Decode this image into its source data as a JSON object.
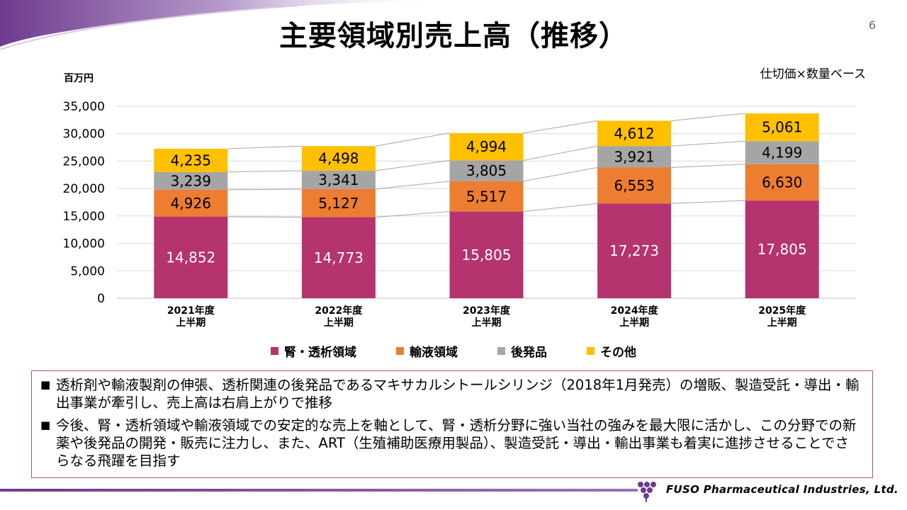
{
  "header": {
    "title": "主要領域別売上高（推移）",
    "page_number": "6"
  },
  "chart_note": {
    "unit": "百万円",
    "basis": "仕切価×数量ベース"
  },
  "chart_data": {
    "type": "bar",
    "stacked": true,
    "title": "主要領域別売上高（推移）",
    "ylabel": "百万円",
    "ylim": [
      0,
      35000
    ],
    "yticks": [
      0,
      5000,
      10000,
      15000,
      20000,
      25000,
      30000,
      35000
    ],
    "ytick_labels": [
      "0",
      "5,000",
      "10,000",
      "15,000",
      "20,000",
      "25,000",
      "30,000",
      "35,000"
    ],
    "categories": [
      [
        "2021年度",
        "上半期"
      ],
      [
        "2022年度",
        "上半期"
      ],
      [
        "2023年度",
        "上半期"
      ],
      [
        "2024年度",
        "上半期"
      ],
      [
        "2025年度",
        "上半期"
      ]
    ],
    "series": [
      {
        "name": "腎・透析領域",
        "color": "#b5336f",
        "label_color": "#ffffff",
        "values": [
          14852,
          14773,
          15805,
          17273,
          17805
        ],
        "labels": [
          "14,852",
          "14,773",
          "15,805",
          "17,273",
          "17,805"
        ]
      },
      {
        "name": "輸液領域",
        "color": "#ed7d31",
        "label_color": "#000000",
        "values": [
          4926,
          5127,
          5517,
          6553,
          6630
        ],
        "labels": [
          "4,926",
          "5,127",
          "5,517",
          "6,553",
          "6,630"
        ]
      },
      {
        "name": "後発品",
        "color": "#a5a5a5",
        "label_color": "#000000",
        "values": [
          3239,
          3341,
          3805,
          3921,
          4199
        ],
        "labels": [
          "3,239",
          "3,341",
          "3,805",
          "3,921",
          "4,199"
        ]
      },
      {
        "name": "その他",
        "color": "#ffc000",
        "label_color": "#000000",
        "values": [
          4235,
          4498,
          4994,
          4612,
          5061
        ],
        "labels": [
          "4,235",
          "4,498",
          "4,994",
          "4,612",
          "5,061"
        ]
      }
    ],
    "series_lines": true,
    "gridlines": true,
    "legend_position": "bottom"
  },
  "summary": {
    "bullet_marker": "■",
    "bullets": [
      "透析剤や輸液製剤の伸張、透析関連の後発品であるマキサカルシトールシリンジ（2018年1月発売）の増販、製造受託・導出・輸出事業が牽引し、売上高は右肩上がりで推移",
      "今後、腎・透析領域や輸液領域での安定的な売上を軸として、腎・透析分野に強い当社の強みを最大限に活かし、この分野での新薬や後発品の開発・販売に注力し、また、ART（生殖補助医療用製品）、製造受託・導出・輸出事業も着実に進捗させることでさらなる飛躍を目指す"
    ]
  },
  "footer": {
    "company": "FUSO Pharmaceutical Industries, Ltd.",
    "logo_icon": "grape-cluster-logo-icon"
  },
  "colors": {
    "accent_purple": "#6e3b8e",
    "box_border": "#b0507a"
  }
}
